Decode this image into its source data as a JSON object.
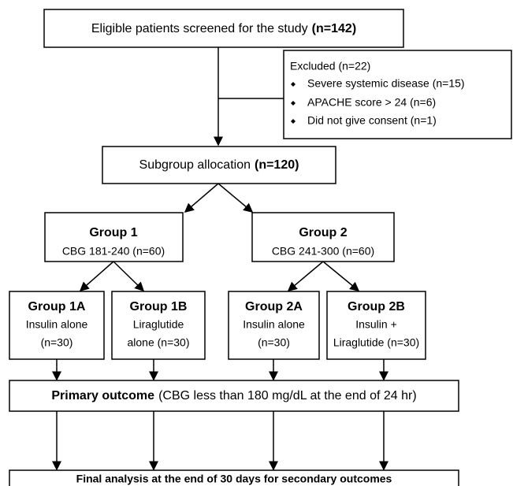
{
  "screened": {
    "text": "Eligible patients screened for  the study",
    "count": "(n=142)"
  },
  "excluded": {
    "title": "Excluded (n=22)",
    "reasons": [
      "Severe systemic disease (n=15)",
      "APACHE score > 24 (n=6)",
      "Did not give consent (n=1)"
    ]
  },
  "allocation": {
    "text": "Subgroup allocation",
    "count": "(n=120)"
  },
  "groups": [
    {
      "name": "Group 1",
      "detail": "CBG 181-240 (n=60)",
      "subgroups": [
        {
          "name": "Group 1A",
          "lines": [
            "Insulin alone",
            "(n=30)"
          ]
        },
        {
          "name": "Group 1B",
          "lines": [
            "Liraglutide",
            "alone (n=30)"
          ]
        }
      ]
    },
    {
      "name": "Group 2",
      "detail": "CBG 241-300 (n=60)",
      "subgroups": [
        {
          "name": "Group 2A",
          "lines": [
            "Insulin alone",
            "(n=30)"
          ]
        },
        {
          "name": "Group 2B",
          "lines": [
            "Insulin +",
            "Liraglutide (n=30)"
          ]
        }
      ]
    }
  ],
  "primary_outcome": {
    "label": "Primary outcome",
    "detail": "(CBG less than 180 mg/dL at the end of 24 hr)"
  },
  "final": "Final analysis at the end of 30 days for secondary outcomes"
}
